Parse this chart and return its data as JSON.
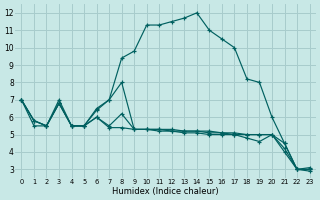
{
  "xlabel": "Humidex (Indice chaleur)",
  "xlim": [
    -0.5,
    23.5
  ],
  "ylim": [
    2.5,
    12.5
  ],
  "xticks": [
    0,
    1,
    2,
    3,
    4,
    5,
    6,
    7,
    8,
    9,
    10,
    11,
    12,
    13,
    14,
    15,
    16,
    17,
    18,
    19,
    20,
    21,
    22,
    23
  ],
  "yticks": [
    3,
    4,
    5,
    6,
    7,
    8,
    9,
    10,
    11,
    12
  ],
  "background_color": "#c8e8e6",
  "grid_color": "#a8cccc",
  "line_color": "#006060",
  "series": [
    [
      7.0,
      5.8,
      5.5,
      7.0,
      5.5,
      5.5,
      6.5,
      7.0,
      9.4,
      9.8,
      11.3,
      11.3,
      11.5,
      11.7,
      12.0,
      11.0,
      10.5,
      10.0,
      8.2,
      8.0,
      6.0,
      4.5,
      3.0,
      2.9
    ],
    [
      7.0,
      5.8,
      5.5,
      6.8,
      5.5,
      5.5,
      6.4,
      7.0,
      8.0,
      5.3,
      5.3,
      5.3,
      5.3,
      5.2,
      5.2,
      5.2,
      5.1,
      5.1,
      5.0,
      5.0,
      5.0,
      4.5,
      3.0,
      3.0
    ],
    [
      7.0,
      5.8,
      5.5,
      6.8,
      5.5,
      5.5,
      6.0,
      5.5,
      6.2,
      5.3,
      5.3,
      5.3,
      5.2,
      5.2,
      5.2,
      5.1,
      5.1,
      5.0,
      5.0,
      5.0,
      5.0,
      4.2,
      3.0,
      3.0
    ],
    [
      7.0,
      5.5,
      5.5,
      6.8,
      5.5,
      5.5,
      6.0,
      5.4,
      5.4,
      5.3,
      5.3,
      5.2,
      5.2,
      5.1,
      5.1,
      5.0,
      5.0,
      5.0,
      4.8,
      4.6,
      5.0,
      4.0,
      3.0,
      3.1
    ]
  ]
}
